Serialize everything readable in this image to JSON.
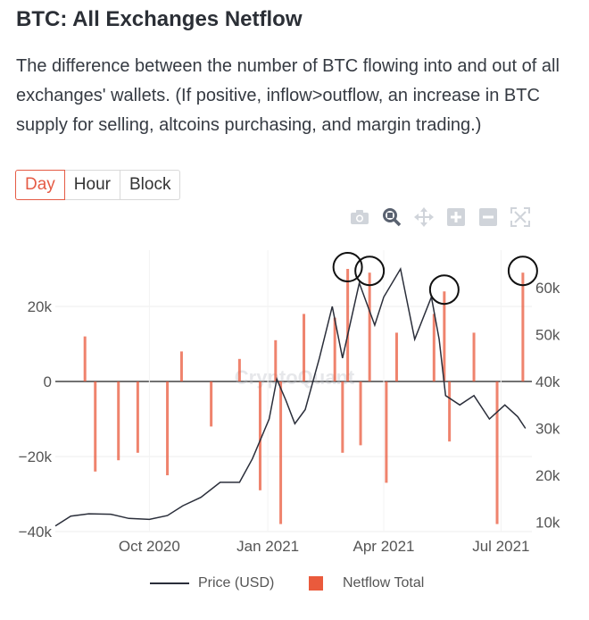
{
  "header": {
    "title": "BTC: All Exchanges Netflow",
    "description": "The difference between the number of BTC flowing into and out of all exchanges' wallets. (If positive, inflow>outflow, an increase in BTC supply for selling, altcoins purchasing, and margin trading.)"
  },
  "tabs": [
    {
      "label": "Day",
      "active": true
    },
    {
      "label": "Hour",
      "active": false
    },
    {
      "label": "Block",
      "active": false
    }
  ],
  "toolbar": {
    "icons": [
      "camera-icon",
      "zoom-icon",
      "pan-icon",
      "zoom-in-icon",
      "zoom-out-icon",
      "autoscale-icon"
    ]
  },
  "legend": {
    "price_label": "Price (USD)",
    "netflow_label": "Netflow Total"
  },
  "colors": {
    "accent": "#e55b45",
    "bar": "#ea5a3c",
    "price_line": "#2a2e3a"
  },
  "chart_data": {
    "type": "bar",
    "x_ticks": [
      "Oct 2020",
      "Jan 2021",
      "Apr 2021",
      "Jul 2021"
    ],
    "x_tick_dates": [
      "2020-10-01",
      "2021-01-01",
      "2021-04-01",
      "2021-07-01"
    ],
    "x_range": [
      "2020-07-20",
      "2021-07-25"
    ],
    "ylim_left": [
      -40000,
      35000
    ],
    "yticks_left": [
      "20k",
      "0",
      "−20k",
      "−40k"
    ],
    "ylim_right": [
      8000,
      68000
    ],
    "yticks_right": [
      "60k",
      "50k",
      "40k",
      "30k",
      "20k",
      "10k"
    ],
    "grid": true,
    "legend_position": "bottom",
    "series": [
      {
        "name": "Netflow Total",
        "kind": "bar",
        "points": [
          [
            "2020-08-12",
            12000
          ],
          [
            "2020-08-20",
            -24000
          ],
          [
            "2020-09-07",
            -21000
          ],
          [
            "2020-09-22",
            -19000
          ],
          [
            "2020-10-15",
            -25000
          ],
          [
            "2020-10-26",
            8000
          ],
          [
            "2020-11-18",
            -12000
          ],
          [
            "2020-12-10",
            6000
          ],
          [
            "2020-12-26",
            -29000
          ],
          [
            "2021-01-07",
            11000
          ],
          [
            "2021-01-11",
            -38000
          ],
          [
            "2021-01-29",
            18000
          ],
          [
            "2021-02-22",
            17000
          ],
          [
            "2021-02-28",
            -19000
          ],
          [
            "2021-03-04",
            30000
          ],
          [
            "2021-03-14",
            -17000
          ],
          [
            "2021-03-21",
            29000
          ],
          [
            "2021-04-03",
            -27000
          ],
          [
            "2021-04-11",
            13000
          ],
          [
            "2021-05-10",
            18000
          ],
          [
            "2021-05-18",
            24000
          ],
          [
            "2021-05-22",
            -16000
          ],
          [
            "2021-06-10",
            13000
          ],
          [
            "2021-06-28",
            -38000
          ],
          [
            "2021-07-18",
            29000
          ]
        ]
      },
      {
        "name": "Price (USD)",
        "kind": "line",
        "points": [
          [
            "2020-07-20",
            9200
          ],
          [
            "2020-08-01",
            11300
          ],
          [
            "2020-08-15",
            11800
          ],
          [
            "2020-09-01",
            11700
          ],
          [
            "2020-09-15",
            10800
          ],
          [
            "2020-10-01",
            10600
          ],
          [
            "2020-10-15",
            11400
          ],
          [
            "2020-10-27",
            13500
          ],
          [
            "2020-11-10",
            15300
          ],
          [
            "2020-11-25",
            18500
          ],
          [
            "2020-12-10",
            18500
          ],
          [
            "2020-12-20",
            23500
          ],
          [
            "2021-01-02",
            32000
          ],
          [
            "2021-01-08",
            40500
          ],
          [
            "2021-01-15",
            36000
          ],
          [
            "2021-01-22",
            31000
          ],
          [
            "2021-01-30",
            34000
          ],
          [
            "2021-02-10",
            45000
          ],
          [
            "2021-02-20",
            56000
          ],
          [
            "2021-02-28",
            45000
          ],
          [
            "2021-03-13",
            61000
          ],
          [
            "2021-03-25",
            52000
          ],
          [
            "2021-04-01",
            58000
          ],
          [
            "2021-04-14",
            64000
          ],
          [
            "2021-04-25",
            49000
          ],
          [
            "2021-05-08",
            58000
          ],
          [
            "2021-05-14",
            49000
          ],
          [
            "2021-05-19",
            37000
          ],
          [
            "2021-05-30",
            35000
          ],
          [
            "2021-06-10",
            37000
          ],
          [
            "2021-06-22",
            32000
          ],
          [
            "2021-07-04",
            35000
          ],
          [
            "2021-07-14",
            32500
          ],
          [
            "2021-07-20",
            30000
          ]
        ]
      }
    ]
  }
}
